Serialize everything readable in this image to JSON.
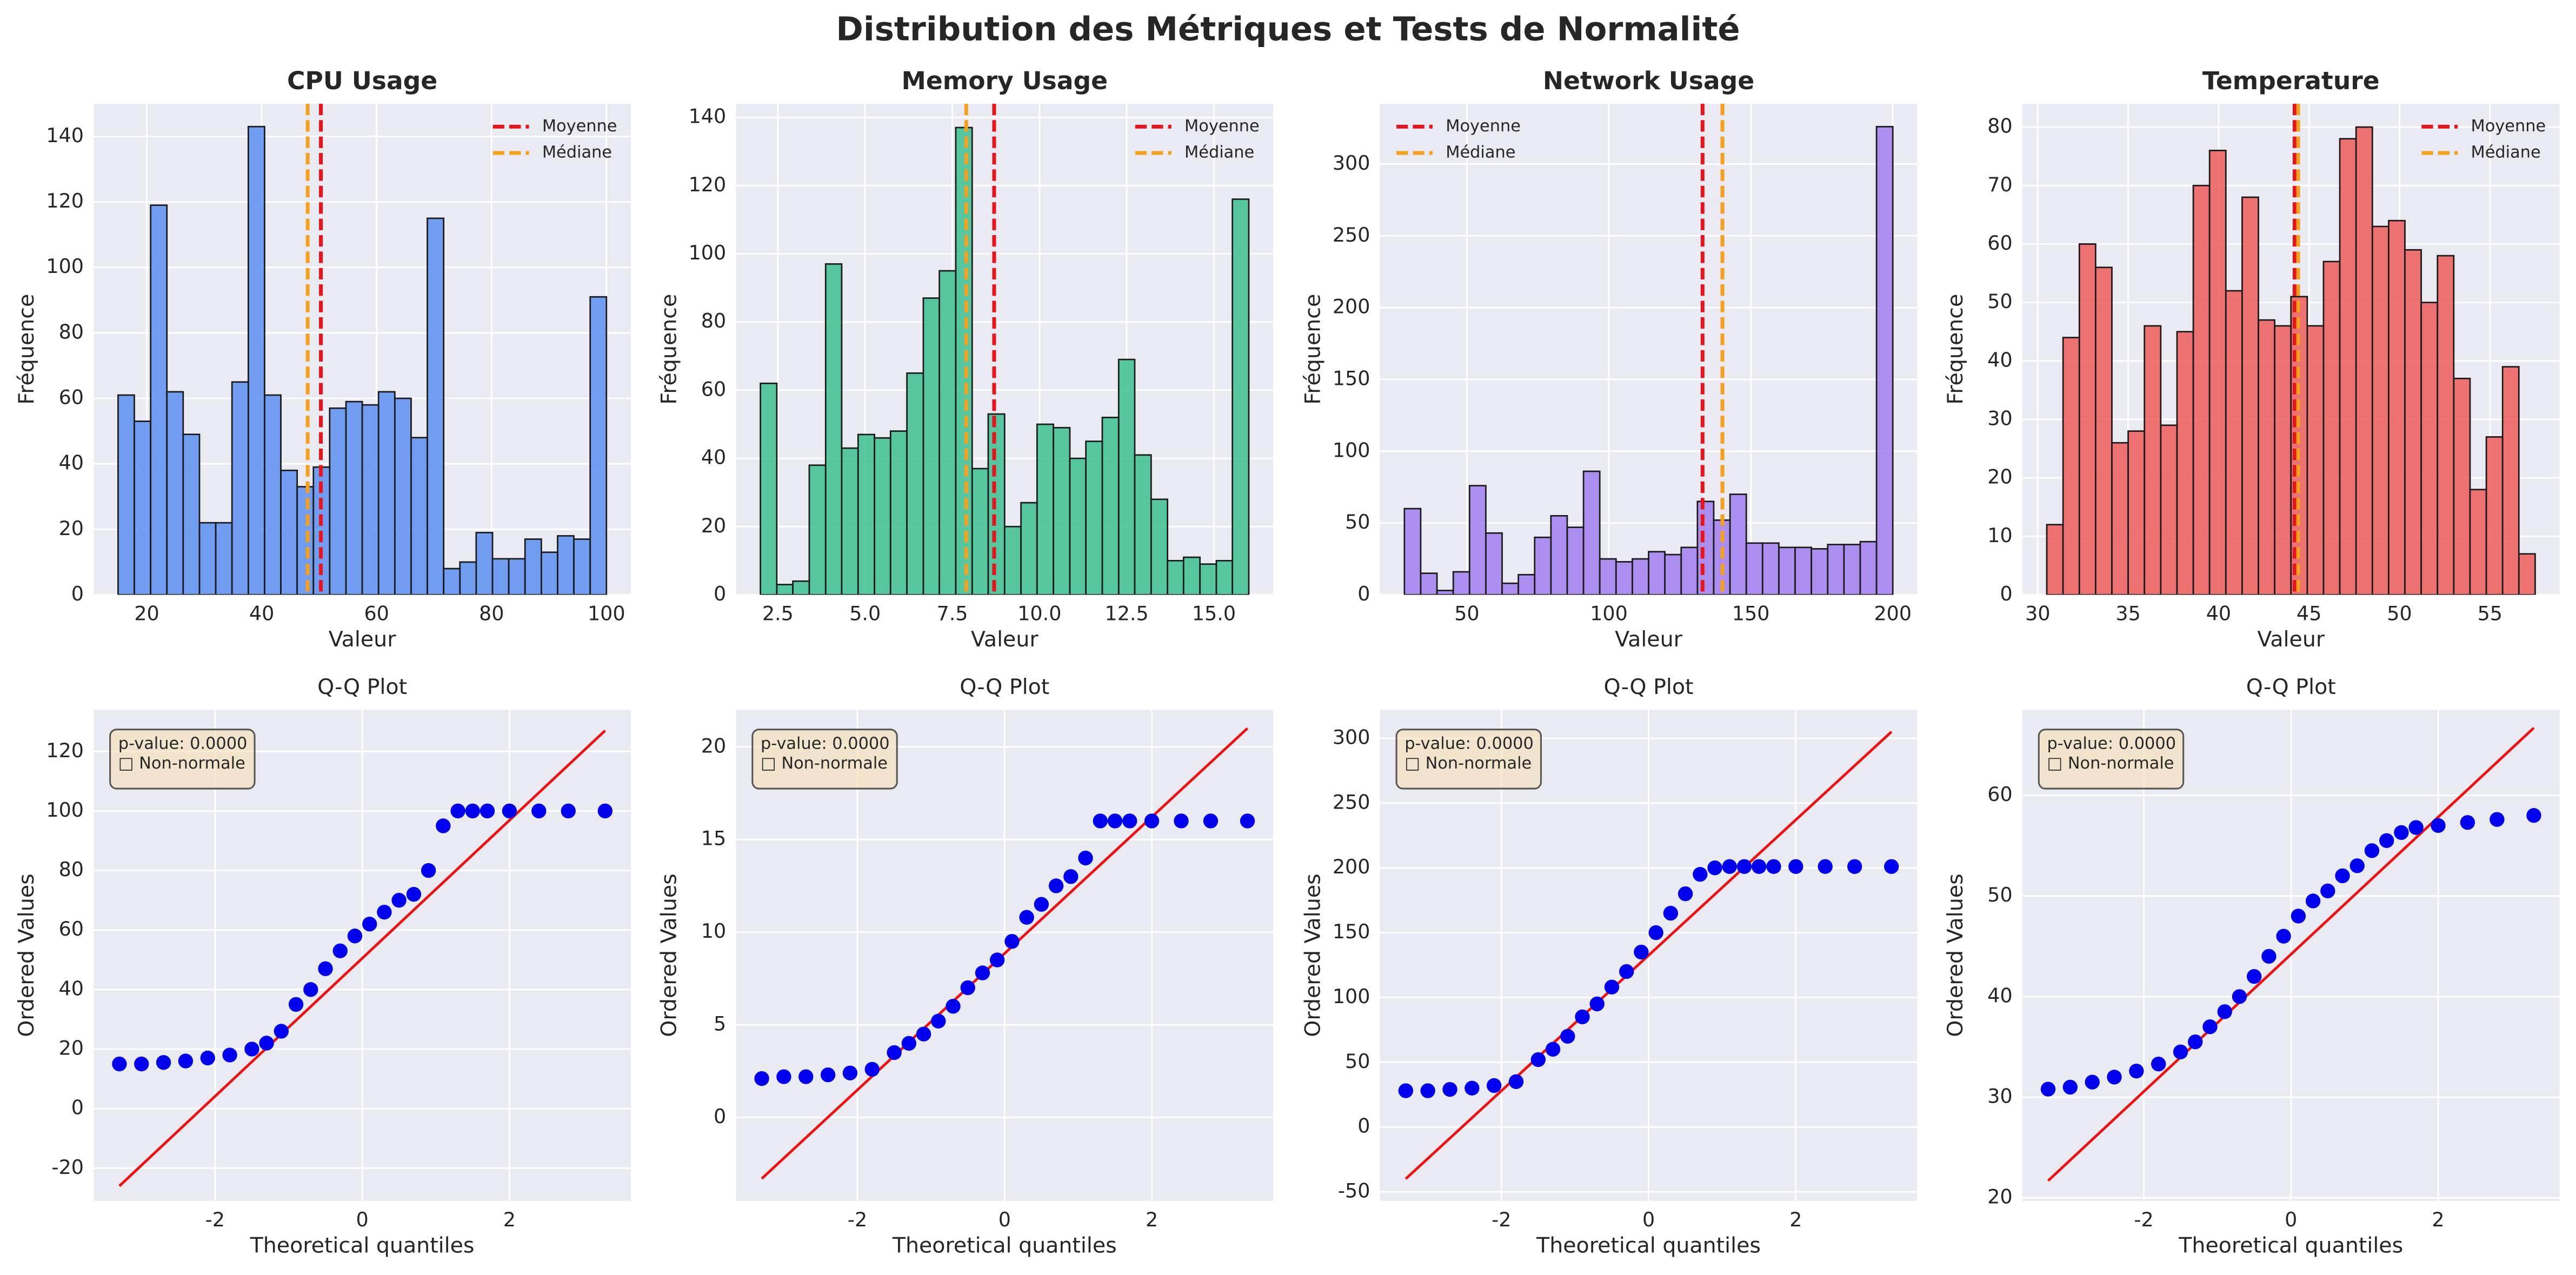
{
  "title": "Distribution des Métriques et Tests de Normalité",
  "chart_data": [
    {
      "type": "histogram",
      "title": "CPU Usage",
      "xlabel": "Valeur",
      "ylabel": "Fréquence",
      "color": "#5b8ff0",
      "bins": [
        15,
        17.83,
        20.67,
        23.5,
        26.33,
        29.17,
        32,
        34.83,
        37.67,
        40.5,
        43.33,
        46.17,
        49,
        51.83,
        54.67,
        57.5,
        60.33,
        63.17,
        66,
        68.83,
        71.67,
        74.5,
        77.33,
        80.17,
        83,
        85.83,
        88.67,
        91.5,
        94.33,
        97.17,
        100
      ],
      "values": [
        61,
        53,
        119,
        62,
        49,
        22,
        22,
        65,
        143,
        61,
        38,
        33,
        39,
        57,
        59,
        58,
        62,
        60,
        48,
        115,
        8,
        10,
        19,
        11,
        11,
        17,
        13,
        18,
        17,
        91
      ],
      "xlim": [
        10.75,
        104.25
      ],
      "ylim": [
        0,
        150
      ],
      "xticks": [
        20,
        40,
        60,
        80,
        100
      ],
      "yticks": [
        0,
        20,
        40,
        60,
        80,
        100,
        120,
        140
      ],
      "lines": [
        {
          "name": "Moyenne",
          "value": 50.3,
          "color": "#e8141c"
        },
        {
          "name": "Médiane",
          "value": 48,
          "color": "#f5a01f"
        }
      ],
      "legend": "upper right",
      "grid": true
    },
    {
      "type": "histogram",
      "title": "Memory Usage",
      "xlabel": "Valeur",
      "ylabel": "Fréquence",
      "color": "#3cc08f",
      "bins": [
        2,
        2.47,
        2.93,
        3.4,
        3.87,
        4.33,
        4.8,
        5.27,
        5.73,
        6.2,
        6.67,
        7.13,
        7.6,
        8.07,
        8.53,
        9,
        9.47,
        9.93,
        10.4,
        10.87,
        11.33,
        11.8,
        12.27,
        12.73,
        13.2,
        13.67,
        14.13,
        14.6,
        15.07,
        15.53,
        16
      ],
      "values": [
        62,
        3,
        4,
        38,
        97,
        43,
        47,
        46,
        48,
        65,
        87,
        95,
        137,
        37,
        53,
        20,
        27,
        50,
        49,
        40,
        45,
        52,
        69,
        41,
        28,
        10,
        11,
        9,
        10,
        116
      ],
      "xlim": [
        1.3,
        16.7
      ],
      "ylim": [
        0,
        144
      ],
      "xticks": [
        2.5,
        {
          "value": 5,
          "label": "5.0"
        },
        7.5,
        {
          "value": 10,
          "label": "10.0"
        },
        12.5,
        {
          "value": 15,
          "label": "15.0"
        }
      ],
      "yticks": [
        0,
        20,
        40,
        60,
        80,
        100,
        120,
        140
      ],
      "lines": [
        {
          "name": "Moyenne",
          "value": 8.7,
          "color": "#e8141c"
        },
        {
          "name": "Médiane",
          "value": 7.9,
          "color": "#f5a01f"
        }
      ],
      "legend": "upper right",
      "grid": true
    },
    {
      "type": "histogram",
      "title": "Network Usage",
      "xlabel": "Valeur",
      "ylabel": "Fréquence",
      "color": "#a07ef0",
      "bins": [
        28,
        33.73,
        39.47,
        45.2,
        50.93,
        56.67,
        62.4,
        68.13,
        73.87,
        79.6,
        85.33,
        91.07,
        96.8,
        102.53,
        108.27,
        114,
        119.73,
        125.47,
        131.2,
        136.93,
        142.67,
        148.4,
        154.13,
        159.87,
        165.6,
        171.33,
        177.07,
        182.8,
        188.53,
        194.27,
        200
      ],
      "values": [
        60,
        15,
        3,
        16,
        76,
        43,
        8,
        14,
        40,
        55,
        47,
        86,
        25,
        23,
        25,
        30,
        28,
        33,
        65,
        52,
        70,
        36,
        36,
        33,
        33,
        32,
        35,
        35,
        37,
        326
      ],
      "xlim": [
        19.4,
        208.6
      ],
      "ylim": [
        0,
        342
      ],
      "xticks": [
        50,
        100,
        150,
        200
      ],
      "yticks": [
        0,
        50,
        100,
        150,
        200,
        250,
        300
      ],
      "lines": [
        {
          "name": "Moyenne",
          "value": 133,
          "color": "#e8141c"
        },
        {
          "name": "Médiane",
          "value": 140,
          "color": "#f5a01f"
        }
      ],
      "legend": "upper left",
      "grid": true
    },
    {
      "type": "histogram",
      "title": "Temperature",
      "xlabel": "Valeur",
      "ylabel": "Fréquence",
      "color": "#ee5c5c",
      "bins": [
        30.5,
        31.4,
        32.3,
        33.2,
        34.1,
        35,
        35.9,
        36.8,
        37.7,
        38.6,
        39.5,
        40.4,
        41.3,
        42.2,
        43.1,
        44,
        44.9,
        45.8,
        46.7,
        47.6,
        48.5,
        49.4,
        50.3,
        51.2,
        52.1,
        53,
        53.9,
        54.8,
        55.7,
        56.6,
        57.5
      ],
      "values": [
        12,
        44,
        60,
        56,
        26,
        28,
        46,
        29,
        45,
        70,
        76,
        52,
        68,
        47,
        46,
        51,
        46,
        57,
        78,
        80,
        63,
        64,
        59,
        50,
        58,
        37,
        18,
        27,
        39,
        7
      ],
      "xlim": [
        29.15,
        58.85
      ],
      "ylim": [
        0,
        84
      ],
      "xticks": [
        30,
        35,
        40,
        45,
        50,
        55
      ],
      "yticks": [
        0,
        10,
        20,
        30,
        40,
        50,
        60,
        70,
        80
      ],
      "lines": [
        {
          "name": "Moyenne",
          "value": 44.2,
          "color": "#e8141c"
        },
        {
          "name": "Médiane",
          "value": 44.4,
          "color": "#f5a01f"
        }
      ],
      "legend": "upper right",
      "grid": true
    },
    {
      "type": "qq",
      "title": "Q-Q Plot",
      "xlabel": "Theoretical quantiles",
      "ylabel": "Ordered Values",
      "color": "#0000ee",
      "x": [
        -3.3,
        -3.0,
        -2.7,
        -2.4,
        -2.1,
        -1.8,
        -1.5,
        -1.3,
        -1.1,
        -0.9,
        -0.7,
        -0.5,
        -0.3,
        -0.1,
        0.1,
        0.3,
        0.5,
        0.7,
        0.9,
        1.1,
        1.3,
        1.5,
        1.7,
        2.0,
        2.4,
        2.8,
        3.3
      ],
      "values": [
        15,
        15,
        15.5,
        16,
        17,
        18,
        20,
        22,
        26,
        35,
        40,
        47,
        53,
        58,
        62,
        66,
        70,
        72,
        80,
        95,
        100,
        100,
        100,
        100,
        100,
        100,
        100
      ],
      "fit_line": {
        "x": [
          -3.3,
          3.3
        ],
        "y": [
          -26,
          127
        ],
        "color": "#ee1111"
      },
      "xlim": [
        -3.65,
        3.65
      ],
      "ylim": [
        -31,
        134
      ],
      "xticks": [
        -2,
        0,
        2
      ],
      "yticks": [
        -20,
        0,
        20,
        40,
        60,
        80,
        100,
        120
      ],
      "annotation": [
        "p-value: 0.0000",
        "□ Non-normale"
      ],
      "grid": true
    },
    {
      "type": "qq",
      "title": "Q-Q Plot",
      "xlabel": "Theoretical quantiles",
      "ylabel": "Ordered Values",
      "color": "#0000ee",
      "x": [
        -3.3,
        -3.0,
        -2.7,
        -2.4,
        -2.1,
        -1.8,
        -1.5,
        -1.3,
        -1.1,
        -0.9,
        -0.7,
        -0.5,
        -0.3,
        -0.1,
        0.1,
        0.3,
        0.5,
        0.7,
        0.9,
        1.1,
        1.3,
        1.5,
        1.7,
        2.0,
        2.4,
        2.8,
        3.3
      ],
      "values": [
        2.1,
        2.2,
        2.2,
        2.3,
        2.4,
        2.6,
        3.5,
        4,
        4.5,
        5.2,
        6,
        7,
        7.8,
        8.5,
        9.5,
        10.8,
        11.5,
        12.5,
        13,
        14,
        16,
        16,
        16,
        16,
        16,
        16,
        16
      ],
      "fit_line": {
        "x": [
          -3.3,
          3.3
        ],
        "y": [
          -3.3,
          21
        ],
        "color": "#ee1111"
      },
      "xlim": [
        -3.65,
        3.65
      ],
      "ylim": [
        -4.5,
        22
      ],
      "xticks": [
        -2,
        0,
        2
      ],
      "yticks": [
        0,
        5,
        10,
        15,
        20
      ],
      "annotation": [
        "p-value: 0.0000",
        "□ Non-normale"
      ],
      "grid": true
    },
    {
      "type": "qq",
      "title": "Q-Q Plot",
      "xlabel": "Theoretical quantiles",
      "ylabel": "Ordered Values",
      "color": "#0000ee",
      "x": [
        -3.3,
        -3.0,
        -2.7,
        -2.4,
        -2.1,
        -1.8,
        -1.5,
        -1.3,
        -1.1,
        -0.9,
        -0.7,
        -0.5,
        -0.3,
        -0.1,
        0.1,
        0.3,
        0.5,
        0.7,
        0.9,
        1.1,
        1.3,
        1.5,
        1.7,
        2.0,
        2.4,
        2.8,
        3.3
      ],
      "values": [
        28,
        28,
        29,
        30,
        32,
        35,
        52,
        60,
        70,
        85,
        95,
        108,
        120,
        135,
        150,
        165,
        180,
        195,
        200,
        201,
        201,
        201,
        201,
        201,
        201,
        201,
        201
      ],
      "fit_line": {
        "x": [
          -3.3,
          3.3
        ],
        "y": [
          -40,
          305
        ],
        "color": "#ee1111"
      },
      "xlim": [
        -3.65,
        3.65
      ],
      "ylim": [
        -57,
        322
      ],
      "xticks": [
        -2,
        0,
        2
      ],
      "yticks": [
        -50,
        0,
        50,
        100,
        150,
        200,
        250,
        300
      ],
      "annotation": [
        "p-value: 0.0000",
        "□ Non-normale"
      ],
      "grid": true
    },
    {
      "type": "qq",
      "title": "Q-Q Plot",
      "xlabel": "Theoretical quantiles",
      "ylabel": "Ordered Values",
      "color": "#0000ee",
      "x": [
        -3.3,
        -3.0,
        -2.7,
        -2.4,
        -2.1,
        -1.8,
        -1.5,
        -1.3,
        -1.1,
        -0.9,
        -0.7,
        -0.5,
        -0.3,
        -0.1,
        0.1,
        0.3,
        0.5,
        0.7,
        0.9,
        1.1,
        1.3,
        1.5,
        1.7,
        2.0,
        2.4,
        2.8,
        3.3
      ],
      "values": [
        30.8,
        31,
        31.5,
        32,
        32.6,
        33.3,
        34.5,
        35.5,
        37,
        38.5,
        40,
        42,
        44,
        46,
        48,
        49.5,
        50.5,
        52,
        53,
        54.5,
        55.5,
        56.3,
        56.8,
        57,
        57.3,
        57.6,
        58
      ],
      "fit_line": {
        "x": [
          -3.3,
          3.3
        ],
        "y": [
          21.7,
          66.7
        ],
        "color": "#ee1111"
      },
      "xlim": [
        -3.65,
        3.65
      ],
      "ylim": [
        19.7,
        68.5
      ],
      "xticks": [
        -2,
        0,
        2
      ],
      "yticks": [
        20,
        30,
        40,
        50,
        60
      ],
      "annotation": [
        "p-value: 0.0000",
        "□ Non-normale"
      ],
      "grid": true
    }
  ]
}
